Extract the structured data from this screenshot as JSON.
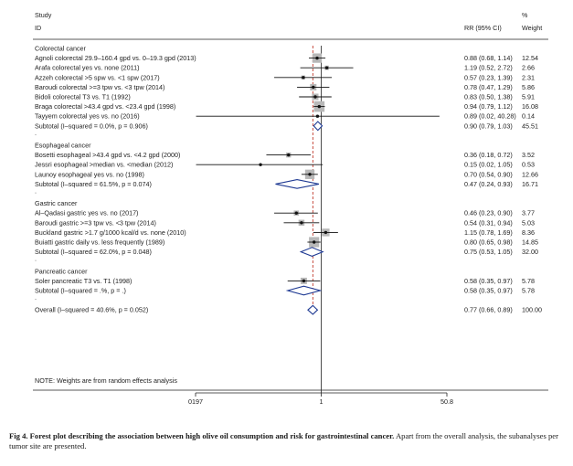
{
  "header": {
    "study_label": "Study",
    "id_label": "ID",
    "rr_label": "RR (95% CI)",
    "pct_label": "%",
    "weight_label": "Weight"
  },
  "axis": {
    "ticks": [
      "0197",
      "1",
      "50.8"
    ],
    "tick_values": [
      0.0197,
      1,
      50.8
    ]
  },
  "note": "NOTE: Weights are from random effects analysis",
  "caption": {
    "bold": "Fig 4. Forest plot describing the association between high olive oil consumption and risk for gastrointestinal cancer.",
    "rest": " Apart from the overall analysis, the subanalyses per tumor site are presented."
  },
  "colors": {
    "reference_line": "#c0392b",
    "summary_diamond": "#1f3a93",
    "weight_box": "#b8b8b8",
    "text": "#222222"
  },
  "chart_data": {
    "type": "forest",
    "x_scale": "log",
    "null_value": 1,
    "overall_estimate": 0.77,
    "rows": [
      {
        "kind": "group",
        "label": "Colorectal cancer"
      },
      {
        "kind": "study",
        "label": "Agnoli colorectal 29.9–160.4 gpd vs. 0–19.3 gpd (2013)",
        "rr": 0.88,
        "lo": 0.68,
        "hi": 1.14,
        "ci_text": "0.88 (0.68, 1.14)",
        "weight": "12.54"
      },
      {
        "kind": "study",
        "label": "Arafa colorectal yes vs. none (2011)",
        "rr": 1.19,
        "lo": 0.52,
        "hi": 2.72,
        "ci_text": "1.19 (0.52, 2.72)",
        "weight": "2.66"
      },
      {
        "kind": "study",
        "label": "Azzeh colorectal >5 spw vs. <1 spw (2017)",
        "rr": 0.57,
        "lo": 0.23,
        "hi": 1.39,
        "ci_text": "0.57 (0.23, 1.39)",
        "weight": "2.31"
      },
      {
        "kind": "study",
        "label": "Baroudi colorectal >=3 tpw vs. <3 tpw (2014)",
        "rr": 0.78,
        "lo": 0.47,
        "hi": 1.29,
        "ci_text": "0.78 (0.47, 1.29)",
        "weight": "5.86"
      },
      {
        "kind": "study",
        "label": "Bidoli colorectal T3 vs. T1 (1992)",
        "rr": 0.83,
        "lo": 0.5,
        "hi": 1.38,
        "ci_text": "0.83 (0.50, 1.38)",
        "weight": "5.91"
      },
      {
        "kind": "study",
        "label": "Braga colorectal >43.4 gpd vs. <23.4 gpd (1998)",
        "rr": 0.94,
        "lo": 0.79,
        "hi": 1.12,
        "ci_text": "0.94 (0.79, 1.12)",
        "weight": "16.08"
      },
      {
        "kind": "study",
        "label": "Tayyem colorectal yes vs. no (2016)",
        "rr": 0.89,
        "lo": 0.02,
        "hi": 40.28,
        "ci_text": "0.89 (0.02, 40.28)",
        "weight": "0.14"
      },
      {
        "kind": "subtotal",
        "label": "Subtotal  (I–squared = 0.0%, p = 0.906)",
        "rr": 0.9,
        "lo": 0.79,
        "hi": 1.03,
        "ci_text": "0.90 (0.79, 1.03)",
        "weight": "45.51"
      },
      {
        "kind": "dot",
        "label": "."
      },
      {
        "kind": "group",
        "label": "Esophageal cancer"
      },
      {
        "kind": "study",
        "label": "Bosetti esophageal >43.4 gpd vs. <4.2 gpd (2000)",
        "rr": 0.36,
        "lo": 0.18,
        "hi": 0.72,
        "ci_text": "0.36 (0.18, 0.72)",
        "weight": "3.52"
      },
      {
        "kind": "study",
        "label": "Jessri esophageal >median vs. <median (2012)",
        "rr": 0.15,
        "lo": 0.02,
        "hi": 1.05,
        "ci_text": "0.15 (0.02, 1.05)",
        "weight": "0.53"
      },
      {
        "kind": "study",
        "label": "Launoy esophageal yes vs. no (1998)",
        "rr": 0.7,
        "lo": 0.54,
        "hi": 0.9,
        "ci_text": "0.70 (0.54, 0.90)",
        "weight": "12.66"
      },
      {
        "kind": "subtotal",
        "label": "Subtotal  (I–squared = 61.5%, p = 0.074)",
        "rr": 0.47,
        "lo": 0.24,
        "hi": 0.93,
        "ci_text": "0.47 (0.24, 0.93)",
        "weight": "16.71"
      },
      {
        "kind": "dot",
        "label": "."
      },
      {
        "kind": "group",
        "label": "Gastric cancer"
      },
      {
        "kind": "study",
        "label": "Al–Qadasi gastric yes vs. no (2017)",
        "rr": 0.46,
        "lo": 0.23,
        "hi": 0.9,
        "ci_text": "0.46 (0.23, 0.90)",
        "weight": "3.77"
      },
      {
        "kind": "study",
        "label": "Baroudi gastric >=3 tpw vs. <3 tpw (2014)",
        "rr": 0.54,
        "lo": 0.31,
        "hi": 0.94,
        "ci_text": "0.54 (0.31, 0.94)",
        "weight": "5.03"
      },
      {
        "kind": "study",
        "label": "Buckland gastric >1.7 g/1000 kcal/d vs. none (2010)",
        "rr": 1.15,
        "lo": 0.78,
        "hi": 1.69,
        "ci_text": "1.15 (0.78, 1.69)",
        "weight": "8.36"
      },
      {
        "kind": "study",
        "label": "Buiatti gastric daily vs. less frequently (1989)",
        "rr": 0.8,
        "lo": 0.65,
        "hi": 0.98,
        "ci_text": "0.80 (0.65, 0.98)",
        "weight": "14.85"
      },
      {
        "kind": "subtotal",
        "label": "Subtotal  (I–squared = 62.0%, p = 0.048)",
        "rr": 0.75,
        "lo": 0.53,
        "hi": 1.05,
        "ci_text": "0.75 (0.53, 1.05)",
        "weight": "32.00"
      },
      {
        "kind": "dot",
        "label": "."
      },
      {
        "kind": "group",
        "label": "Pancreatic cancer"
      },
      {
        "kind": "study",
        "label": "Soler pancreatic T3 vs. T1 (1998)",
        "rr": 0.58,
        "lo": 0.35,
        "hi": 0.97,
        "ci_text": "0.58 (0.35, 0.97)",
        "weight": "5.78"
      },
      {
        "kind": "subtotal",
        "label": "Subtotal  (I–squared = .%, p = .)",
        "rr": 0.58,
        "lo": 0.35,
        "hi": 0.97,
        "ci_text": "0.58 (0.35, 0.97)",
        "weight": "5.78"
      },
      {
        "kind": "dot",
        "label": "."
      },
      {
        "kind": "overall",
        "label": "Overall  (I–squared = 40.6%, p = 0.052)",
        "rr": 0.77,
        "lo": 0.66,
        "hi": 0.89,
        "ci_text": "0.77 (0.66, 0.89)",
        "weight": "100.00"
      }
    ]
  }
}
